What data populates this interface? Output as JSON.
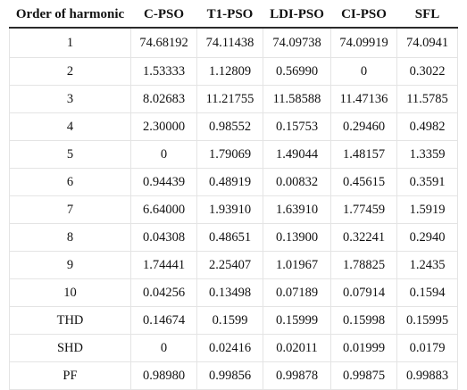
{
  "table": {
    "headers": [
      "Order of harmonic",
      "C-PSO",
      "T1-PSO",
      "LDI-PSO",
      "CI-PSO",
      "SFL"
    ],
    "rows": [
      [
        "1",
        "74.68192",
        "74.11438",
        "74.09738",
        "74.09919",
        "74.0941"
      ],
      [
        "2",
        "1.53333",
        "1.12809",
        "0.56990",
        "0",
        "0.3022"
      ],
      [
        "3",
        "8.02683",
        "11.21755",
        "11.58588",
        "11.47136",
        "11.5785"
      ],
      [
        "4",
        "2.30000",
        "0.98552",
        "0.15753",
        "0.29460",
        "0.4982"
      ],
      [
        "5",
        "0",
        "1.79069",
        "1.49044",
        "1.48157",
        "1.3359"
      ],
      [
        "6",
        "0.94439",
        "0.48919",
        "0.00832",
        "0.45615",
        "0.3591"
      ],
      [
        "7",
        "6.64000",
        "1.93910",
        "1.63910",
        "1.77459",
        "1.5919"
      ],
      [
        "8",
        "0.04308",
        "0.48651",
        "0.13900",
        "0.32241",
        "0.2940"
      ],
      [
        "9",
        "1.74441",
        "2.25407",
        "1.01967",
        "1.78825",
        "1.2435"
      ],
      [
        "10",
        "0.04256",
        "0.13498",
        "0.07189",
        "0.07914",
        "0.1594"
      ],
      [
        "THD",
        "0.14674",
        "0.1599",
        "0.15999",
        "0.15998",
        "0.15995"
      ],
      [
        "SHD",
        "0",
        "0.02416",
        "0.02011",
        "0.01999",
        "0.0179"
      ],
      [
        "PF",
        "0.98980",
        "0.99856",
        "0.99878",
        "0.99875",
        "0.99883"
      ]
    ]
  }
}
